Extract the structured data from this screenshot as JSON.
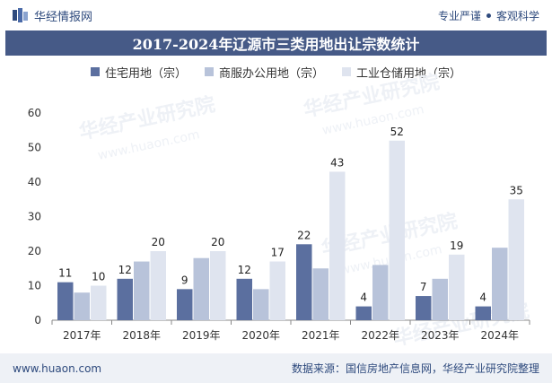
{
  "header": {
    "brand_name": "华经情报网",
    "tagline_left": "专业严谨",
    "tagline_right": "客观科学"
  },
  "footer": {
    "url": "www.huaon.com",
    "source": "数据来源：国信房地产信息网，华经产业研究院整理"
  },
  "watermark": {
    "text_cn": "华经产业研究院",
    "text_url": "www.huaon.com"
  },
  "colors": {
    "title_bg": "#465a87",
    "series": [
      "#5b6f9f",
      "#b8c3da",
      "#dfe4ef"
    ],
    "footer_bg": "#eef1f6"
  },
  "chart_data": {
    "type": "bar",
    "title": "2017-2024年辽源市三类用地出让宗数统计",
    "categories": [
      "2017年",
      "2018年",
      "2019年",
      "2020年",
      "2021年",
      "2022年",
      "2023年",
      "2024年"
    ],
    "series": [
      {
        "name": "住宅用地（宗）",
        "values": [
          11,
          12,
          9,
          12,
          22,
          4,
          7,
          4
        ],
        "labeled": true
      },
      {
        "name": "商服办公用地（宗）",
        "values": [
          8,
          17,
          18,
          9,
          15,
          16,
          12,
          21
        ],
        "labeled": false
      },
      {
        "name": "工业仓储用地（宗）",
        "values": [
          10,
          20,
          20,
          17,
          43,
          52,
          19,
          35
        ],
        "labeled": true
      }
    ],
    "ylim": [
      0,
      60
    ],
    "yticks": [
      0,
      10,
      20,
      30,
      40,
      50,
      60
    ],
    "grid": false,
    "legend_position": "top"
  }
}
